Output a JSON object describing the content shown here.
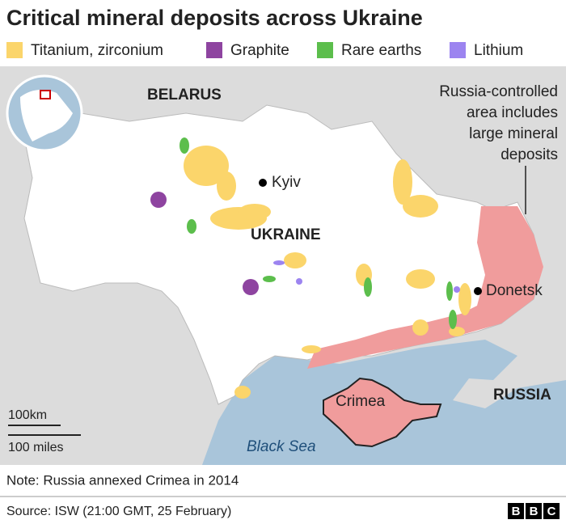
{
  "title": "Critical mineral deposits across Ukraine",
  "legend": [
    {
      "label": "Titanium, zirconium",
      "color": "#fbd56b"
    },
    {
      "label": "Graphite",
      "color": "#8e44a0"
    },
    {
      "label": "Rare earths",
      "color": "#5cbe4c"
    },
    {
      "label": "Lithium",
      "color": "#9c84f0"
    }
  ],
  "map": {
    "belarus": "BELARUS",
    "ukraine": "UKRAINE",
    "russia": "RUSSIA",
    "kyiv": "Kyiv",
    "donetsk": "Donetsk",
    "crimea": "Crimea",
    "black_sea": "Black Sea",
    "annotation": [
      "Russia-controlled",
      "area includes",
      "large mineral",
      "deposits"
    ],
    "scale_km": "100km",
    "scale_miles": "100 miles"
  },
  "note": "Note: Russia annexed Crimea in 2014",
  "source": "Source: ISW (21:00 GMT, 25 February)",
  "logo": [
    "B",
    "B",
    "C"
  ]
}
